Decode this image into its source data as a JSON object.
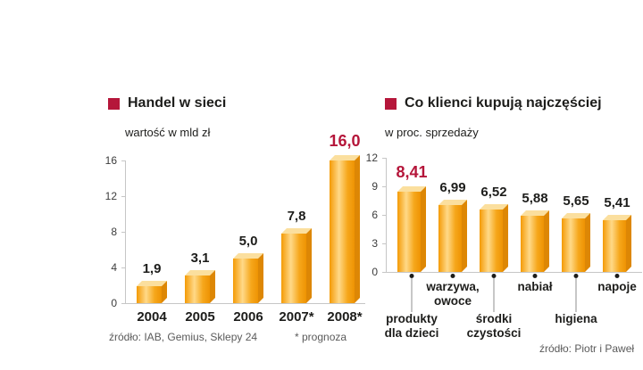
{
  "accent": "#b5163a",
  "chart_data": [
    {
      "type": "bar",
      "title": "Handel w sieci",
      "unit_label": "wartość w mld zł",
      "categories": [
        "2004",
        "2005",
        "2006",
        "2007*",
        "2008*"
      ],
      "values": [
        1.9,
        3.1,
        5.0,
        7.8,
        16.0
      ],
      "value_labels": [
        "1,9",
        "3,1",
        "5,0",
        "7,8",
        "16,0"
      ],
      "highlight_index": 4,
      "ylim": [
        0,
        16
      ],
      "yticks": [
        0,
        4,
        8,
        12,
        16
      ],
      "grid": false,
      "legend": "none",
      "source": "źródło:  IAB, Gemius, Sklepy 24",
      "note": "* prognoza"
    },
    {
      "type": "bar",
      "title": "Co klienci kupują najczęściej",
      "unit_label": "w proc. sprzedaży",
      "categories": [
        "produkty dla dzieci",
        "warzywa, owoce",
        "środki czystości",
        "nabiał",
        "higiena",
        "napoje"
      ],
      "category_lines": [
        [
          "produkty",
          "dla dzieci"
        ],
        [
          "warzywa,",
          "owoce"
        ],
        [
          "środki",
          "czystości"
        ],
        [
          "nabiał"
        ],
        [
          "higiena"
        ],
        [
          "napoje"
        ]
      ],
      "label_row": [
        "low",
        "high",
        "low",
        "high",
        "low",
        "high"
      ],
      "values": [
        8.41,
        6.99,
        6.52,
        5.88,
        5.65,
        5.41
      ],
      "value_labels": [
        "8,41",
        "6,99",
        "6,52",
        "5,88",
        "5,65",
        "5,41"
      ],
      "highlight_index": 0,
      "ylim": [
        0,
        12
      ],
      "yticks": [
        0,
        3,
        6,
        9,
        12
      ],
      "grid": false,
      "legend": "none",
      "source": "źródło: Piotr i Paweł"
    }
  ]
}
